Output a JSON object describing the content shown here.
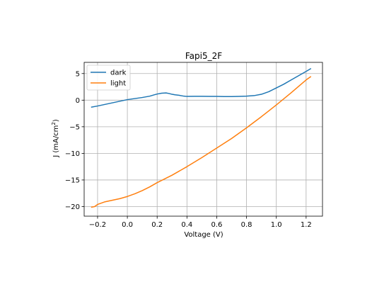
{
  "chart_data": {
    "type": "line",
    "title": "Fapi5_2F",
    "xlabel": "Voltage (V)",
    "ylabel_main": "J (mA/cm",
    "ylabel_sup": "2",
    "ylabel_close": ")",
    "xlim": [
      -0.29,
      1.31
    ],
    "ylim": [
      -21.8,
      7.1
    ],
    "xticks": [
      -0.2,
      0.0,
      0.2,
      0.4,
      0.6,
      0.8,
      1.0,
      1.2
    ],
    "xtick_labels": [
      "−0.2",
      "0.0",
      "0.2",
      "0.4",
      "0.6",
      "0.8",
      "1.0",
      "1.2"
    ],
    "yticks": [
      -20,
      -15,
      -10,
      -5,
      0,
      5
    ],
    "ytick_labels": [
      "−20",
      "−15",
      "−10",
      "−5",
      "0",
      "5"
    ],
    "grid": true,
    "legend_position": "top-left",
    "series": [
      {
        "name": "dark",
        "color": "#1f77b4",
        "x": [
          -0.24,
          -0.2,
          -0.15,
          -0.1,
          -0.05,
          0.0,
          0.05,
          0.1,
          0.15,
          0.18,
          0.2,
          0.23,
          0.26,
          0.28,
          0.3,
          0.32,
          0.35,
          0.38,
          0.4,
          0.45,
          0.5,
          0.55,
          0.6,
          0.65,
          0.7,
          0.75,
          0.8,
          0.85,
          0.9,
          0.95,
          1.0,
          1.05,
          1.1,
          1.15,
          1.2,
          1.23
        ],
        "y": [
          -1.3,
          -1.1,
          -0.8,
          -0.5,
          -0.2,
          0.1,
          0.3,
          0.5,
          0.75,
          1.0,
          1.15,
          1.3,
          1.35,
          1.25,
          1.1,
          1.0,
          0.9,
          0.75,
          0.7,
          0.72,
          0.72,
          0.7,
          0.7,
          0.68,
          0.68,
          0.7,
          0.75,
          0.85,
          1.1,
          1.6,
          2.3,
          3.0,
          3.8,
          4.6,
          5.4,
          5.9
        ]
      },
      {
        "name": "light",
        "color": "#ff7f0e",
        "x": [
          -0.24,
          -0.22,
          -0.2,
          -0.15,
          -0.1,
          -0.05,
          0.0,
          0.05,
          0.1,
          0.15,
          0.2,
          0.3,
          0.4,
          0.5,
          0.6,
          0.7,
          0.8,
          0.9,
          1.0,
          1.1,
          1.2,
          1.23
        ],
        "y": [
          -20.1,
          -20.0,
          -19.6,
          -19.1,
          -18.8,
          -18.5,
          -18.1,
          -17.6,
          -17.0,
          -16.3,
          -15.5,
          -14.1,
          -12.5,
          -10.8,
          -9.0,
          -7.2,
          -5.2,
          -3.1,
          -0.9,
          1.4,
          3.8,
          4.4
        ]
      }
    ]
  }
}
